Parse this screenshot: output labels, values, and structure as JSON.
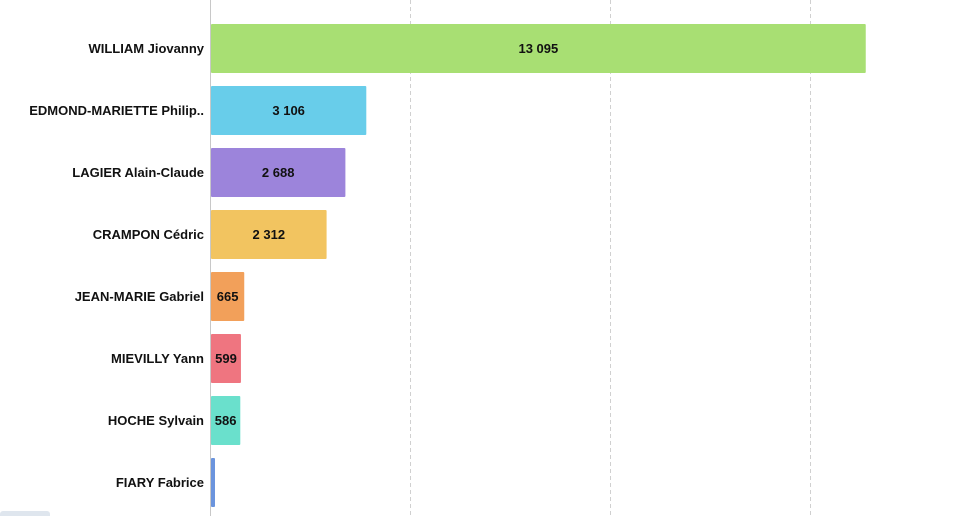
{
  "chart_data": {
    "type": "bar",
    "orientation": "horizontal",
    "categories": [
      "WILLIAM Jiovanny",
      "EDMOND-MARIETTE Philip..",
      "LAGIER Alain-Claude",
      "CRAMPON Cédric",
      "JEAN-MARIE Gabriel",
      "MIEVILLY Yann",
      "HOCHE Sylvain",
      "FIARY Fabrice"
    ],
    "values": [
      13095,
      3106,
      2688,
      2312,
      665,
      599,
      586,
      80
    ],
    "value_labels": [
      "13 095",
      "3 106",
      "2 688",
      "2 312",
      "665",
      "599",
      "586",
      ""
    ],
    "colors": [
      "#a8df73",
      "#68cdea",
      "#9c84db",
      "#f2c460",
      "#f2a05a",
      "#ef7580",
      "#6ae0cc",
      "#6b94dd"
    ],
    "xlim": [
      0,
      16000
    ],
    "grid": true,
    "grid_ticks": [
      4000,
      8000,
      12000
    ],
    "title": "",
    "xlabel": "",
    "ylabel": ""
  }
}
